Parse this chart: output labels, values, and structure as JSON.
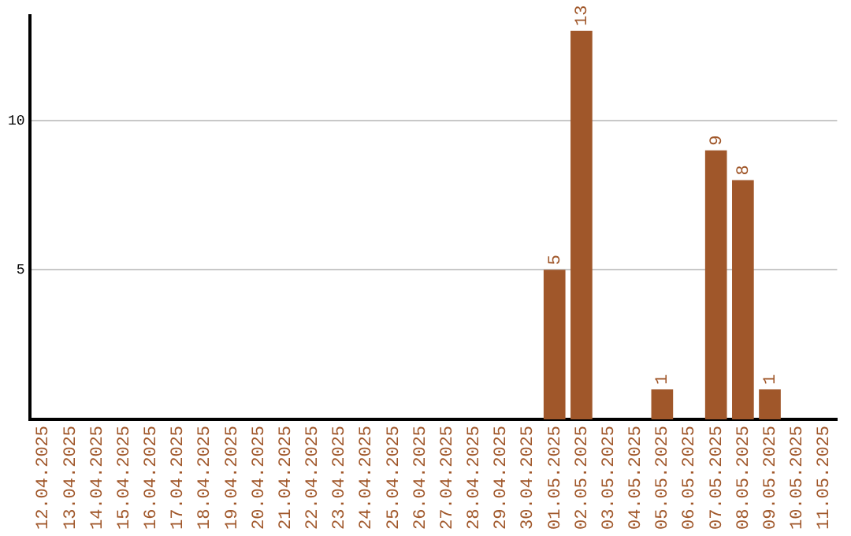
{
  "chart_data": {
    "type": "bar",
    "categories": [
      "12.04.2025",
      "13.04.2025",
      "14.04.2025",
      "15.04.2025",
      "16.04.2025",
      "17.04.2025",
      "18.04.2025",
      "19.04.2025",
      "20.04.2025",
      "21.04.2025",
      "22.04.2025",
      "23.04.2025",
      "24.04.2025",
      "25.04.2025",
      "26.04.2025",
      "27.04.2025",
      "28.04.2025",
      "29.04.2025",
      "30.04.2025",
      "01.05.2025",
      "02.05.2025",
      "03.05.2025",
      "04.05.2025",
      "05.05.2025",
      "06.05.2025",
      "07.05.2025",
      "08.05.2025",
      "09.05.2025",
      "10.05.2025",
      "11.05.2025"
    ],
    "values": [
      0,
      0,
      0,
      0,
      0,
      0,
      0,
      0,
      0,
      0,
      0,
      0,
      0,
      0,
      0,
      0,
      0,
      0,
      0,
      5,
      13,
      0,
      0,
      1,
      0,
      9,
      8,
      1,
      0,
      0
    ],
    "value_labels": [
      null,
      null,
      null,
      null,
      null,
      null,
      null,
      null,
      null,
      null,
      null,
      null,
      null,
      null,
      null,
      null,
      null,
      null,
      null,
      "5",
      "13",
      null,
      null,
      "1",
      null,
      "9",
      "8",
      "1",
      null,
      null
    ],
    "color": "#a0572a",
    "ylim": [
      0,
      13.5
    ],
    "yticks": [
      5,
      10
    ],
    "grid": "y",
    "legend": false
  }
}
